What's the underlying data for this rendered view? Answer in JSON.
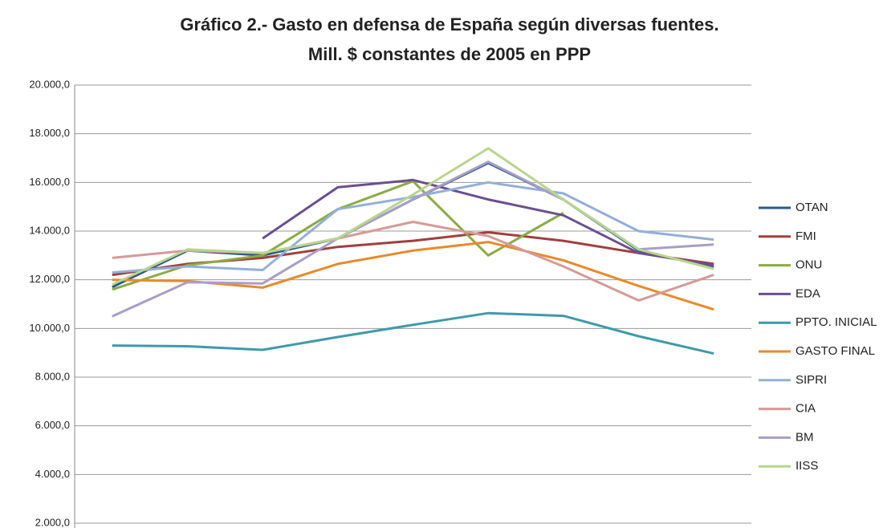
{
  "chart_data": {
    "type": "line",
    "title": [
      "Gráfico 2.- Gasto en defensa de España según diversas fuentes.",
      "Mill. $ constantes de 2005 en PPP"
    ],
    "categories": [
      null,
      null,
      null,
      null,
      null,
      null,
      null,
      null,
      null
    ],
    "series": [
      {
        "name": "OTAN",
        "color": "#2c5a8a",
        "values": [
          11700,
          13200,
          13000,
          13700,
          15300,
          16800,
          15300,
          13200,
          12500
        ]
      },
      {
        "name": "FMI",
        "color": "#a0403c",
        "values": [
          12200,
          12650,
          12900,
          13350,
          13600,
          13950,
          13600,
          13100,
          12650
        ]
      },
      {
        "name": "ONU",
        "color": "#8aab43",
        "values": [
          11600,
          12600,
          13000,
          14900,
          16050,
          13000,
          14750,
          null,
          null
        ]
      },
      {
        "name": "EDA",
        "color": "#6b4f8f",
        "values": [
          null,
          null,
          13700,
          15800,
          16100,
          15300,
          14650,
          13100,
          12600
        ]
      },
      {
        "name": "PPTO. INICIAL",
        "color": "#3e9aaa",
        "values": [
          9300,
          9270,
          9120,
          9650,
          10150,
          10630,
          10520,
          9680,
          8970
        ]
      },
      {
        "name": "GASTO FINAL",
        "color": "#e88a2c",
        "values": [
          12000,
          11950,
          11680,
          12650,
          13200,
          13550,
          12800,
          11750,
          10780
        ]
      },
      {
        "name": "SIPRI",
        "color": "#94aedb",
        "values": [
          12300,
          12550,
          12400,
          14900,
          15400,
          16000,
          15550,
          14000,
          13650
        ]
      },
      {
        "name": "CIA",
        "color": "#d69a98",
        "values": [
          12900,
          13200,
          13100,
          13700,
          14380,
          13800,
          12550,
          11150,
          12200
        ]
      },
      {
        "name": "BM",
        "color": "#a99ec7",
        "values": [
          10500,
          11900,
          11850,
          13700,
          15300,
          16850,
          15300,
          13250,
          13450
        ]
      },
      {
        "name": "IISS",
        "color": "#b8d58e",
        "values": [
          11800,
          13250,
          13100,
          13700,
          15500,
          17400,
          15300,
          13250,
          12450
        ]
      }
    ],
    "ylim": [
      2000,
      20000
    ],
    "yticks": [
      {
        "value": 2000,
        "label": "2.000,0"
      },
      {
        "value": 4000,
        "label": "4.000,0"
      },
      {
        "value": 6000,
        "label": "6.000,0"
      },
      {
        "value": 8000,
        "label": "8.000,0"
      },
      {
        "value": 10000,
        "label": "10.000,0"
      },
      {
        "value": 12000,
        "label": "12.000,0"
      },
      {
        "value": 14000,
        "label": "14.000,0"
      },
      {
        "value": 16000,
        "label": "16.000,0"
      },
      {
        "value": 18000,
        "label": "18.000,0"
      },
      {
        "value": 20000,
        "label": "20.000,0"
      }
    ],
    "grid": true,
    "legend": "right"
  }
}
